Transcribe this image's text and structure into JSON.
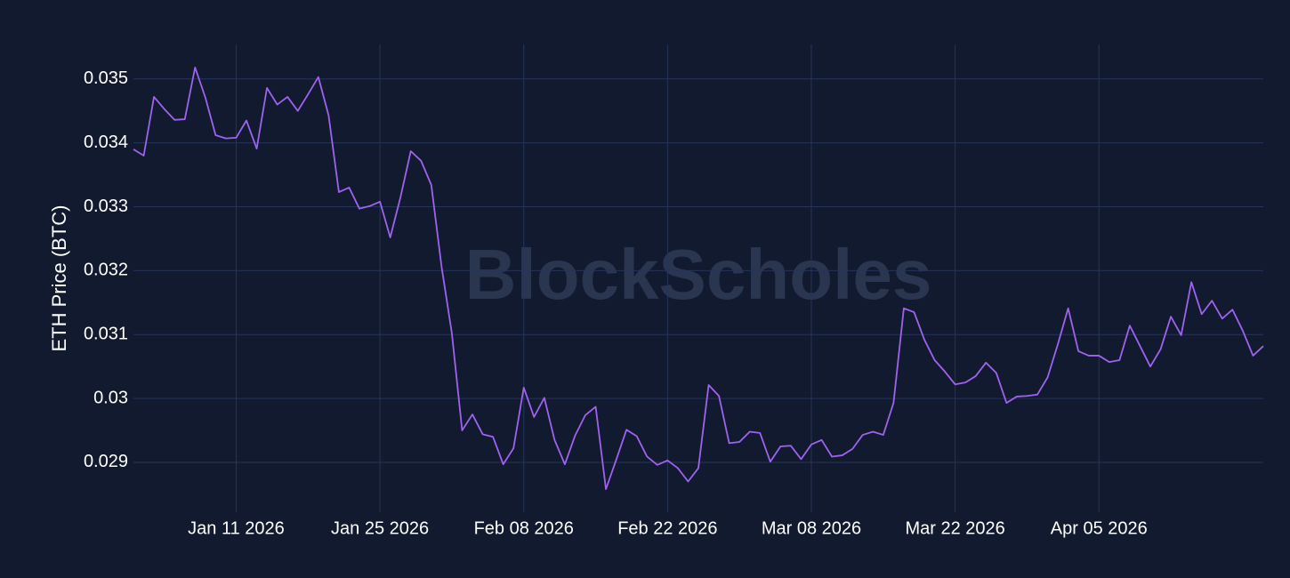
{
  "chart_data": {
    "type": "line",
    "y_label": "ETH Price (BTC)",
    "watermark": "BlockScholes",
    "color": "#a062f0",
    "grid": true,
    "xlim": [
      "2026-01-01",
      "2026-04-21"
    ],
    "ylim": [
      0.02822,
      0.03554
    ],
    "yticks": [
      0.029,
      0.03,
      0.031,
      0.032,
      0.033,
      0.034,
      0.035
    ],
    "xticks": [
      {
        "value": "2026-01-11",
        "label": "Jan 11 2026"
      },
      {
        "value": "2026-01-25",
        "label": "Jan 25 2026"
      },
      {
        "value": "2026-02-08",
        "label": "Feb 08 2026"
      },
      {
        "value": "2026-02-22",
        "label": "Feb 22 2026"
      },
      {
        "value": "2026-03-08",
        "label": "Mar 08 2026"
      },
      {
        "value": "2026-03-22",
        "label": "Mar 22 2026"
      },
      {
        "value": "2026-04-05",
        "label": "Apr 05 2026"
      }
    ],
    "x": [
      "2026-01-01",
      "2026-01-02",
      "2026-01-03",
      "2026-01-04",
      "2026-01-05",
      "2026-01-06",
      "2026-01-07",
      "2026-01-08",
      "2026-01-09",
      "2026-01-10",
      "2026-01-11",
      "2026-01-12",
      "2026-01-13",
      "2026-01-14",
      "2026-01-15",
      "2026-01-16",
      "2026-01-17",
      "2026-01-18",
      "2026-01-19",
      "2026-01-20",
      "2026-01-21",
      "2026-01-22",
      "2026-01-23",
      "2026-01-24",
      "2026-01-25",
      "2026-01-26",
      "2026-01-27",
      "2026-01-28",
      "2026-01-29",
      "2026-01-30",
      "2026-01-31",
      "2026-02-01",
      "2026-02-02",
      "2026-02-03",
      "2026-02-04",
      "2026-02-05",
      "2026-02-06",
      "2026-02-07",
      "2026-02-08",
      "2026-02-09",
      "2026-02-10",
      "2026-02-11",
      "2026-02-12",
      "2026-02-13",
      "2026-02-14",
      "2026-02-15",
      "2026-02-16",
      "2026-02-17",
      "2026-02-18",
      "2026-02-19",
      "2026-02-20",
      "2026-02-21",
      "2026-02-22",
      "2026-02-23",
      "2026-02-24",
      "2026-02-25",
      "2026-02-26",
      "2026-02-27",
      "2026-02-28",
      "2026-03-01",
      "2026-03-02",
      "2026-03-03",
      "2026-03-04",
      "2026-03-05",
      "2026-03-06",
      "2026-03-07",
      "2026-03-08",
      "2026-03-09",
      "2026-03-10",
      "2026-03-11",
      "2026-03-12",
      "2026-03-13",
      "2026-03-14",
      "2026-03-15",
      "2026-03-16",
      "2026-03-17",
      "2026-03-18",
      "2026-03-19",
      "2026-03-20",
      "2026-03-21",
      "2026-03-22",
      "2026-03-23",
      "2026-03-24",
      "2026-03-25",
      "2026-03-26",
      "2026-03-27",
      "2026-03-28",
      "2026-03-29",
      "2026-03-30",
      "2026-03-31",
      "2026-04-01",
      "2026-04-02",
      "2026-04-03",
      "2026-04-04",
      "2026-04-05",
      "2026-04-06",
      "2026-04-07",
      "2026-04-08",
      "2026-04-09",
      "2026-04-10",
      "2026-04-11",
      "2026-04-12",
      "2026-04-13",
      "2026-04-14",
      "2026-04-15",
      "2026-04-16",
      "2026-04-17",
      "2026-04-18",
      "2026-04-19",
      "2026-04-20",
      "2026-04-21"
    ],
    "values": [
      0.0339,
      0.0338,
      0.03472,
      0.03453,
      0.03436,
      0.03437,
      0.03518,
      0.03471,
      0.03412,
      0.03407,
      0.03408,
      0.03435,
      0.03391,
      0.03486,
      0.0346,
      0.03472,
      0.0345,
      0.03476,
      0.03503,
      0.03443,
      0.03323,
      0.0333,
      0.03297,
      0.03301,
      0.03308,
      0.03252,
      0.03315,
      0.03387,
      0.03372,
      0.03334,
      0.03206,
      0.03102,
      0.0295,
      0.02975,
      0.02944,
      0.0294,
      0.02897,
      0.02922,
      0.03017,
      0.02971,
      0.03001,
      0.02935,
      0.02897,
      0.02942,
      0.02974,
      0.02987,
      0.02858,
      0.02904,
      0.02951,
      0.02941,
      0.02909,
      0.02896,
      0.02903,
      0.02891,
      0.0287,
      0.02891,
      0.03021,
      0.03004,
      0.0293,
      0.02932,
      0.02948,
      0.02946,
      0.02901,
      0.02925,
      0.02926,
      0.02905,
      0.02928,
      0.02935,
      0.02909,
      0.02911,
      0.02921,
      0.02943,
      0.02948,
      0.02943,
      0.02993,
      0.03141,
      0.03135,
      0.03092,
      0.0306,
      0.03042,
      0.03022,
      0.03025,
      0.03035,
      0.03056,
      0.0304,
      0.02993,
      0.03003,
      0.03004,
      0.03006,
      0.03033,
      0.03085,
      0.03141,
      0.03074,
      0.03067,
      0.03067,
      0.03057,
      0.0306,
      0.03114,
      0.03082,
      0.0305,
      0.03077,
      0.03128,
      0.03099,
      0.03182,
      0.03132,
      0.03153,
      0.03125,
      0.03139,
      0.03106,
      0.03067,
      0.03082
    ]
  }
}
